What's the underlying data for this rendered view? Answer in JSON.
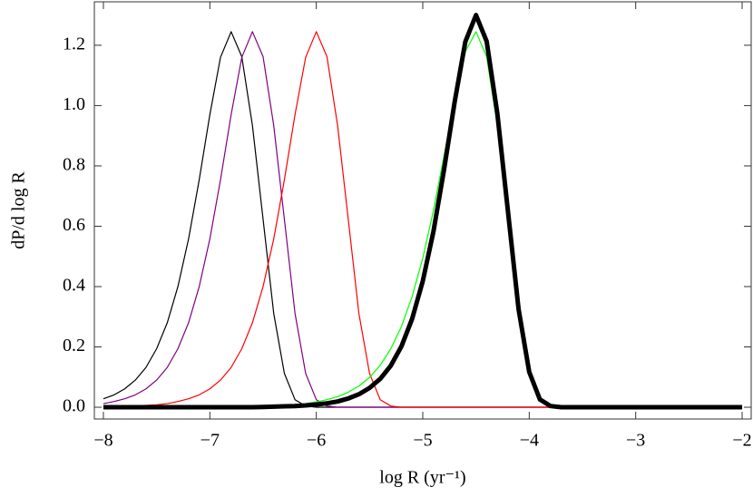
{
  "chart_data": {
    "type": "line",
    "xlabel": "log R (yr⁻¹)",
    "ylabel": "dP/d log R",
    "xlim": [
      -8.085,
      -1.915
    ],
    "ylim": [
      -0.039,
      1.344
    ],
    "xticks": [
      {
        "value": -8,
        "label": "−8"
      },
      {
        "value": -7,
        "label": "−7"
      },
      {
        "value": -6,
        "label": "−6"
      },
      {
        "value": -5,
        "label": "−5"
      },
      {
        "value": -4,
        "label": "−4"
      },
      {
        "value": -3,
        "label": "−3"
      },
      {
        "value": -2,
        "label": "−2"
      }
    ],
    "yticks": [
      {
        "value": 0,
        "label": "0.0"
      },
      0.2,
      0.4,
      0.6,
      0.8,
      {
        "value": 1,
        "label": "1.0"
      },
      1.2
    ],
    "x": [
      -8,
      -7.9,
      -7.8,
      -7.7,
      -7.6,
      -7.5,
      -7.4,
      -7.3,
      -7.2,
      -7.1,
      -7,
      -6.9,
      -6.8,
      -6.7,
      -6.6,
      -6.5,
      -6.4,
      -6.3,
      -6.2,
      -6.1,
      -6,
      -5.9,
      -5.8,
      -5.7,
      -5.6,
      -5.5,
      -5.4,
      -5.3,
      -5.2,
      -5.1,
      -5,
      -4.9,
      -4.8,
      -4.7,
      -4.6,
      -4.5,
      -4.4,
      -4.3,
      -4.2,
      -4.1,
      -4,
      -3.9,
      -3.8,
      -3.7,
      -3.6,
      -3.5,
      -3.4,
      -3.3,
      -3.2,
      -3.1,
      -3,
      -2.9,
      -2.8,
      -2.7,
      -2.6,
      -2.5,
      -2.4,
      -2.3,
      -2.2,
      -2.1,
      -2
    ],
    "series": [
      {
        "color": "#000000",
        "width": 1.2,
        "values": [
          0.028,
          0.041,
          0.061,
          0.09,
          0.132,
          0.194,
          0.28,
          0.4,
          0.558,
          0.754,
          0.97,
          1.16,
          1.245,
          1.162,
          0.934,
          0.623,
          0.311,
          0.112,
          0.025,
          0.004,
          0,
          0,
          0,
          0,
          0,
          0,
          0,
          0,
          0,
          0,
          0,
          0,
          0,
          0,
          0,
          0,
          0,
          0,
          0,
          0,
          0,
          0,
          0,
          0,
          0,
          0,
          0,
          0,
          0,
          0,
          0,
          0,
          0,
          0,
          0,
          0,
          0,
          0,
          0,
          0,
          0
        ]
      },
      {
        "color": "#800080",
        "width": 1.2,
        "values": [
          0.012,
          0.019,
          0.028,
          0.041,
          0.061,
          0.09,
          0.132,
          0.194,
          0.28,
          0.4,
          0.558,
          0.754,
          0.97,
          1.16,
          1.245,
          1.162,
          0.934,
          0.623,
          0.311,
          0.112,
          0.025,
          0.004,
          0,
          0,
          0,
          0,
          0,
          0,
          0,
          0,
          0,
          0,
          0,
          0,
          0,
          0,
          0,
          0,
          0,
          0,
          0,
          0,
          0,
          0,
          0,
          0,
          0,
          0,
          0,
          0,
          0,
          0,
          0,
          0,
          0,
          0,
          0,
          0,
          0,
          0,
          0
        ]
      },
      {
        "color": "#ff0000",
        "width": 1.2,
        "values": [
          0.001,
          0.002,
          0.003,
          0.004,
          0.006,
          0.008,
          0.012,
          0.019,
          0.028,
          0.041,
          0.061,
          0.09,
          0.132,
          0.194,
          0.28,
          0.4,
          0.558,
          0.754,
          0.97,
          1.16,
          1.245,
          1.162,
          0.934,
          0.623,
          0.311,
          0.112,
          0.025,
          0.004,
          0,
          0,
          0,
          0,
          0,
          0,
          0,
          0,
          0,
          0,
          0,
          0,
          0,
          0,
          0,
          0,
          0,
          0,
          0,
          0,
          0,
          0,
          0,
          0,
          0,
          0,
          0,
          0,
          0,
          0,
          0,
          0,
          0
        ]
      },
      {
        "color": "#00ff00",
        "width": 1.2,
        "values": [
          0,
          0,
          0,
          0,
          0,
          0,
          0,
          0,
          0,
          0,
          0,
          0,
          0,
          0,
          0,
          0,
          0.004,
          0.006,
          0.009,
          0.012,
          0.018,
          0.025,
          0.035,
          0.05,
          0.07,
          0.099,
          0.139,
          0.194,
          0.268,
          0.367,
          0.494,
          0.652,
          0.834,
          1.022,
          1.179,
          1.245,
          1.162,
          0.934,
          0.623,
          0.311,
          0.112,
          0.025,
          0.004,
          0,
          0,
          0,
          0,
          0,
          0,
          0,
          0,
          0,
          0,
          0,
          0,
          0,
          0,
          0,
          0,
          0,
          0
        ]
      },
      {
        "color": "#000000",
        "width": 5,
        "values": [
          0,
          0,
          0,
          0,
          0,
          0,
          0,
          0,
          0,
          0,
          0,
          0,
          0,
          0,
          0,
          0.001,
          0.002,
          0.003,
          0.004,
          0.006,
          0.009,
          0.013,
          0.019,
          0.029,
          0.043,
          0.064,
          0.094,
          0.138,
          0.202,
          0.293,
          0.418,
          0.582,
          0.788,
          1.013,
          1.212,
          1.3,
          1.213,
          0.975,
          0.65,
          0.325,
          0.117,
          0.026,
          0.004,
          0,
          0,
          0,
          0,
          0,
          0,
          0,
          0,
          0,
          0,
          0,
          0,
          0,
          0,
          0,
          0,
          0,
          0
        ]
      }
    ]
  }
}
